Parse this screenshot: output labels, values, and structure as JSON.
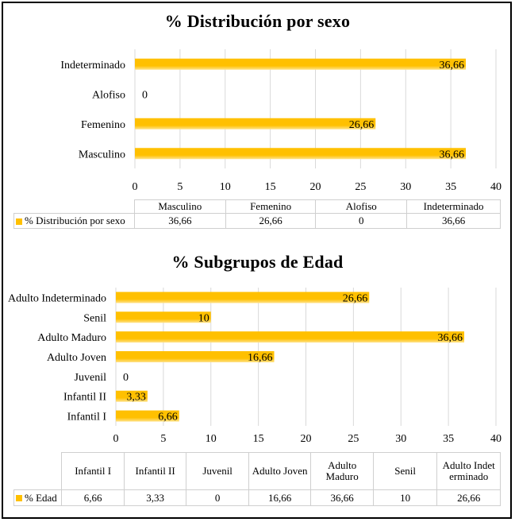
{
  "colors": {
    "bar": "#FFC000",
    "bar_highlight": "#FFE38A",
    "grid": "#d9d9d9",
    "border": "#000000"
  },
  "chart_data": [
    {
      "type": "bar",
      "orientation": "horizontal",
      "title": "% Distribución por sexo",
      "categories": [
        "Masculino",
        "Femenino",
        "Alofiso",
        "Indeterminado"
      ],
      "values": [
        36.66,
        26.66,
        0,
        36.66
      ],
      "value_labels": [
        "36,66",
        "26,66",
        "0",
        "36,66"
      ],
      "xlim": [
        0,
        40
      ],
      "xticks": [
        "0",
        "5",
        "10",
        "15",
        "20",
        "25",
        "30",
        "35",
        "40"
      ],
      "grid": true,
      "data_table": {
        "legend": "% Distribución por sexo",
        "columns": [
          "Masculino",
          "Femenino",
          "Alofiso",
          "Indeterminado"
        ],
        "row": [
          "36,66",
          "26,66",
          "0",
          "36,66"
        ]
      }
    },
    {
      "type": "bar",
      "orientation": "horizontal",
      "title": "% Subgrupos de Edad",
      "categories": [
        "Infantil I",
        "Infantil II",
        "Juvenil",
        "Adulto Joven",
        "Adulto Maduro",
        "Senil",
        "Adulto Indeterminado"
      ],
      "values": [
        6.66,
        3.33,
        0,
        16.66,
        36.66,
        10,
        26.66
      ],
      "value_labels": [
        "6,66",
        "3,33",
        "0",
        "16,66",
        "36,66",
        "10",
        "26,66"
      ],
      "xlim": [
        0,
        40
      ],
      "xticks": [
        "0",
        "5",
        "10",
        "15",
        "20",
        "25",
        "30",
        "35",
        "40"
      ],
      "grid": true,
      "data_table": {
        "legend": "% Edad",
        "columns": [
          "Infantil I",
          "Infantil II",
          "Juvenil",
          "Adulto Joven",
          "Adulto Maduro",
          "Senil",
          "Adulto Indeterminado"
        ],
        "row": [
          "6,66",
          "3,33",
          "0",
          "16,66",
          "36,66",
          "10",
          "26,66"
        ]
      }
    }
  ]
}
